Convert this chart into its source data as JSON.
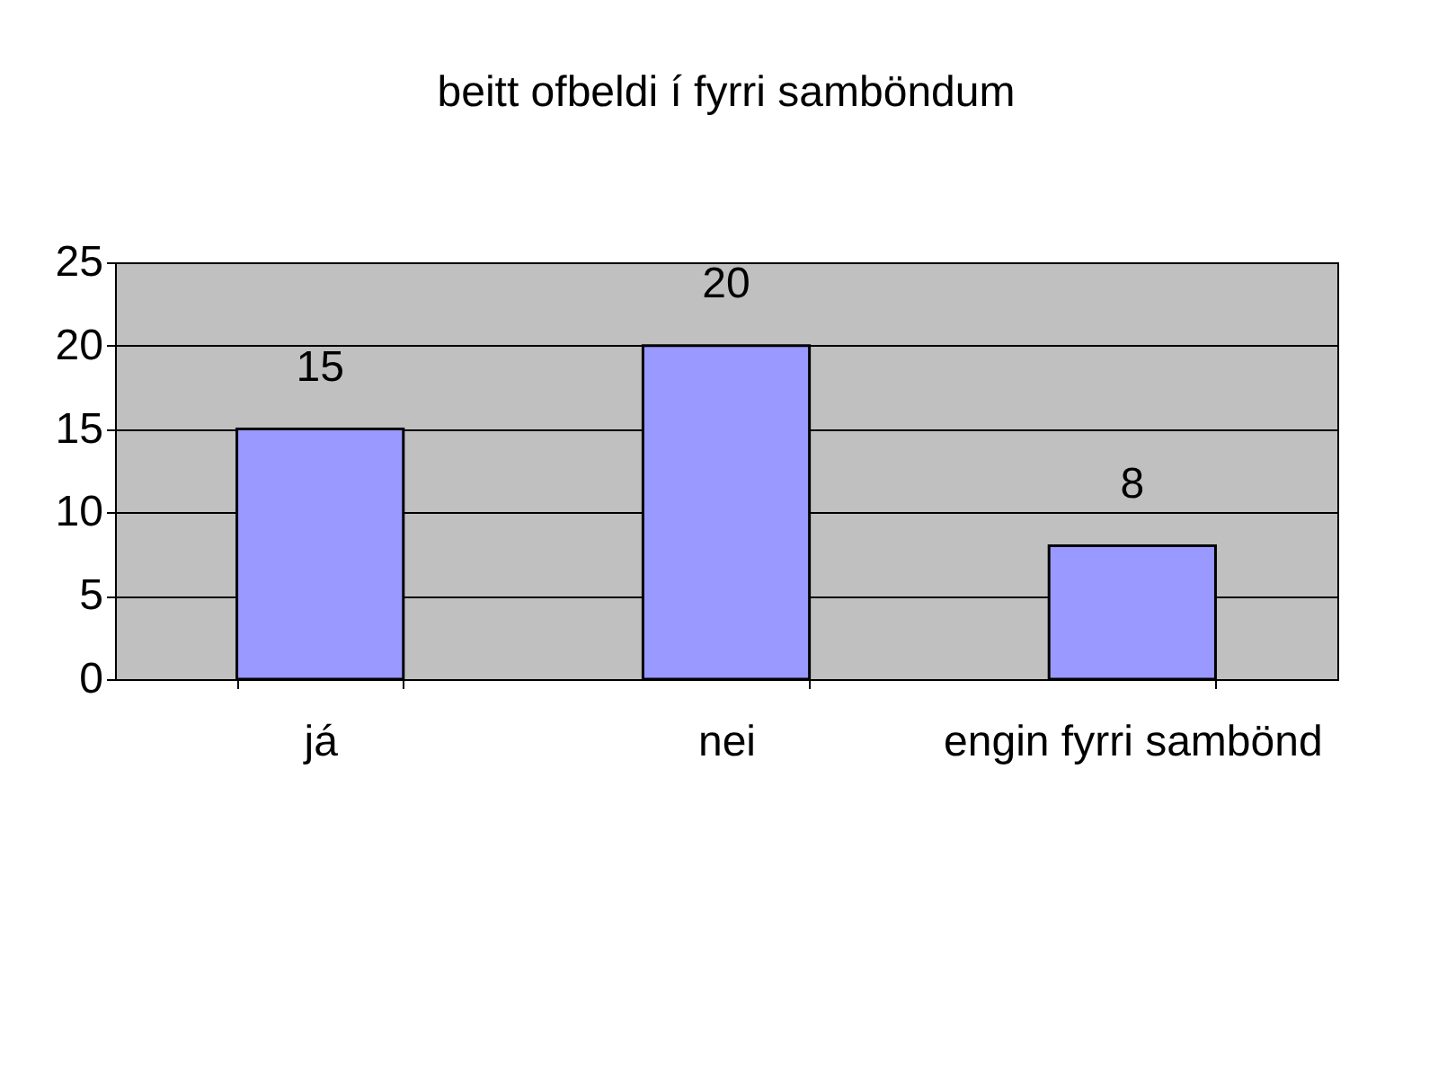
{
  "chart_data": {
    "type": "bar",
    "title": "beitt ofbeldi í fyrri samböndum",
    "categories": [
      "já",
      "nei",
      "engin fyrri sambönd"
    ],
    "values": [
      15,
      20,
      8
    ],
    "color": "#9999ff",
    "ylim": [
      0,
      25
    ],
    "yticks": [
      0,
      5,
      10,
      15,
      20,
      25
    ],
    "grid": "y",
    "data_labels": true
  }
}
